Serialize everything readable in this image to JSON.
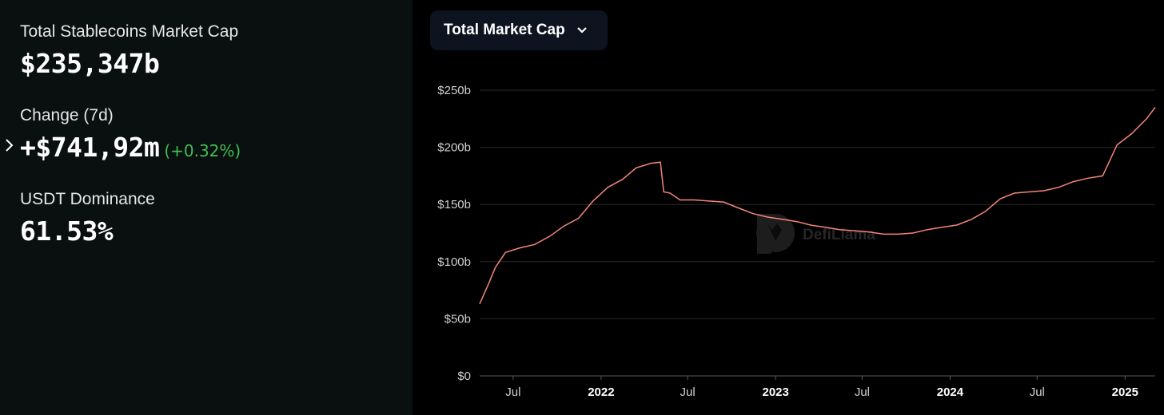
{
  "stats": {
    "market_cap_label": "Total Stablecoins Market Cap",
    "market_cap_value": "$235,347b",
    "change_label": "Change (7d)",
    "change_value": "+$741,92m",
    "change_percent": "(+0.32%)",
    "dominance_label": "USDT Dominance",
    "dominance_value": "61.53%"
  },
  "dropdown": {
    "label": "Total Market Cap",
    "icon": "chevron-down-icon"
  },
  "watermark": "DefiLlama",
  "colors": {
    "line": "#f5867a",
    "positive": "#3fbf53",
    "panel": "#0a0f0f",
    "dropdown_bg": "#0e1320"
  },
  "chart_data": {
    "type": "line",
    "title": "",
    "xlabel": "",
    "ylabel": "",
    "ylim": [
      0,
      250
    ],
    "xlim": [
      "2021-04-22",
      "2025-03-05"
    ],
    "y_ticks": [
      {
        "value": 0,
        "label": "$0"
      },
      {
        "value": 50,
        "label": "$50b"
      },
      {
        "value": 100,
        "label": "$100b"
      },
      {
        "value": 150,
        "label": "$150b"
      },
      {
        "value": 200,
        "label": "$200b"
      },
      {
        "value": 250,
        "label": "$250b"
      }
    ],
    "x_ticks": [
      {
        "date": "2021-07-01",
        "label": "Jul",
        "bold": false
      },
      {
        "date": "2022-01-01",
        "label": "2022",
        "bold": true
      },
      {
        "date": "2022-07-01",
        "label": "Jul",
        "bold": false
      },
      {
        "date": "2023-01-01",
        "label": "2023",
        "bold": true
      },
      {
        "date": "2023-07-01",
        "label": "Jul",
        "bold": false
      },
      {
        "date": "2024-01-01",
        "label": "2024",
        "bold": true
      },
      {
        "date": "2024-07-01",
        "label": "Jul",
        "bold": false
      },
      {
        "date": "2025-01-01",
        "label": "2025",
        "bold": true
      }
    ],
    "grid": true,
    "series": [
      {
        "x": [
          "2021-04-22",
          "2021-05-10",
          "2021-05-25",
          "2021-06-15",
          "2021-07-15",
          "2021-08-15",
          "2021-09-15",
          "2021-10-15",
          "2021-11-15",
          "2021-12-15",
          "2022-01-15",
          "2022-02-15",
          "2022-03-15",
          "2022-04-15",
          "2022-05-05",
          "2022-05-12",
          "2022-05-25",
          "2022-06-15",
          "2022-07-15",
          "2022-08-15",
          "2022-09-15",
          "2022-10-15",
          "2022-11-15",
          "2022-12-15",
          "2023-01-15",
          "2023-02-15",
          "2023-03-15",
          "2023-04-15",
          "2023-05-15",
          "2023-06-15",
          "2023-07-15",
          "2023-08-15",
          "2023-09-15",
          "2023-10-15",
          "2023-11-15",
          "2023-12-15",
          "2024-01-15",
          "2024-02-15",
          "2024-03-15",
          "2024-04-15",
          "2024-05-15",
          "2024-06-15",
          "2024-07-15",
          "2024-08-15",
          "2024-09-15",
          "2024-10-15",
          "2024-11-15",
          "2024-12-15",
          "2025-01-15",
          "2025-02-15",
          "2025-03-05"
        ],
        "y": [
          63,
          80,
          95,
          108,
          112,
          115,
          122,
          131,
          138,
          153,
          165,
          172,
          182,
          186,
          187,
          161,
          160,
          154,
          154,
          153,
          152,
          147,
          142,
          139,
          137,
          135,
          132,
          130,
          128,
          127,
          126,
          124,
          124,
          125,
          128,
          130,
          132,
          137,
          144,
          155,
          160,
          161,
          162,
          165,
          170,
          173,
          175,
          202,
          212,
          225,
          235
        ]
      }
    ]
  }
}
